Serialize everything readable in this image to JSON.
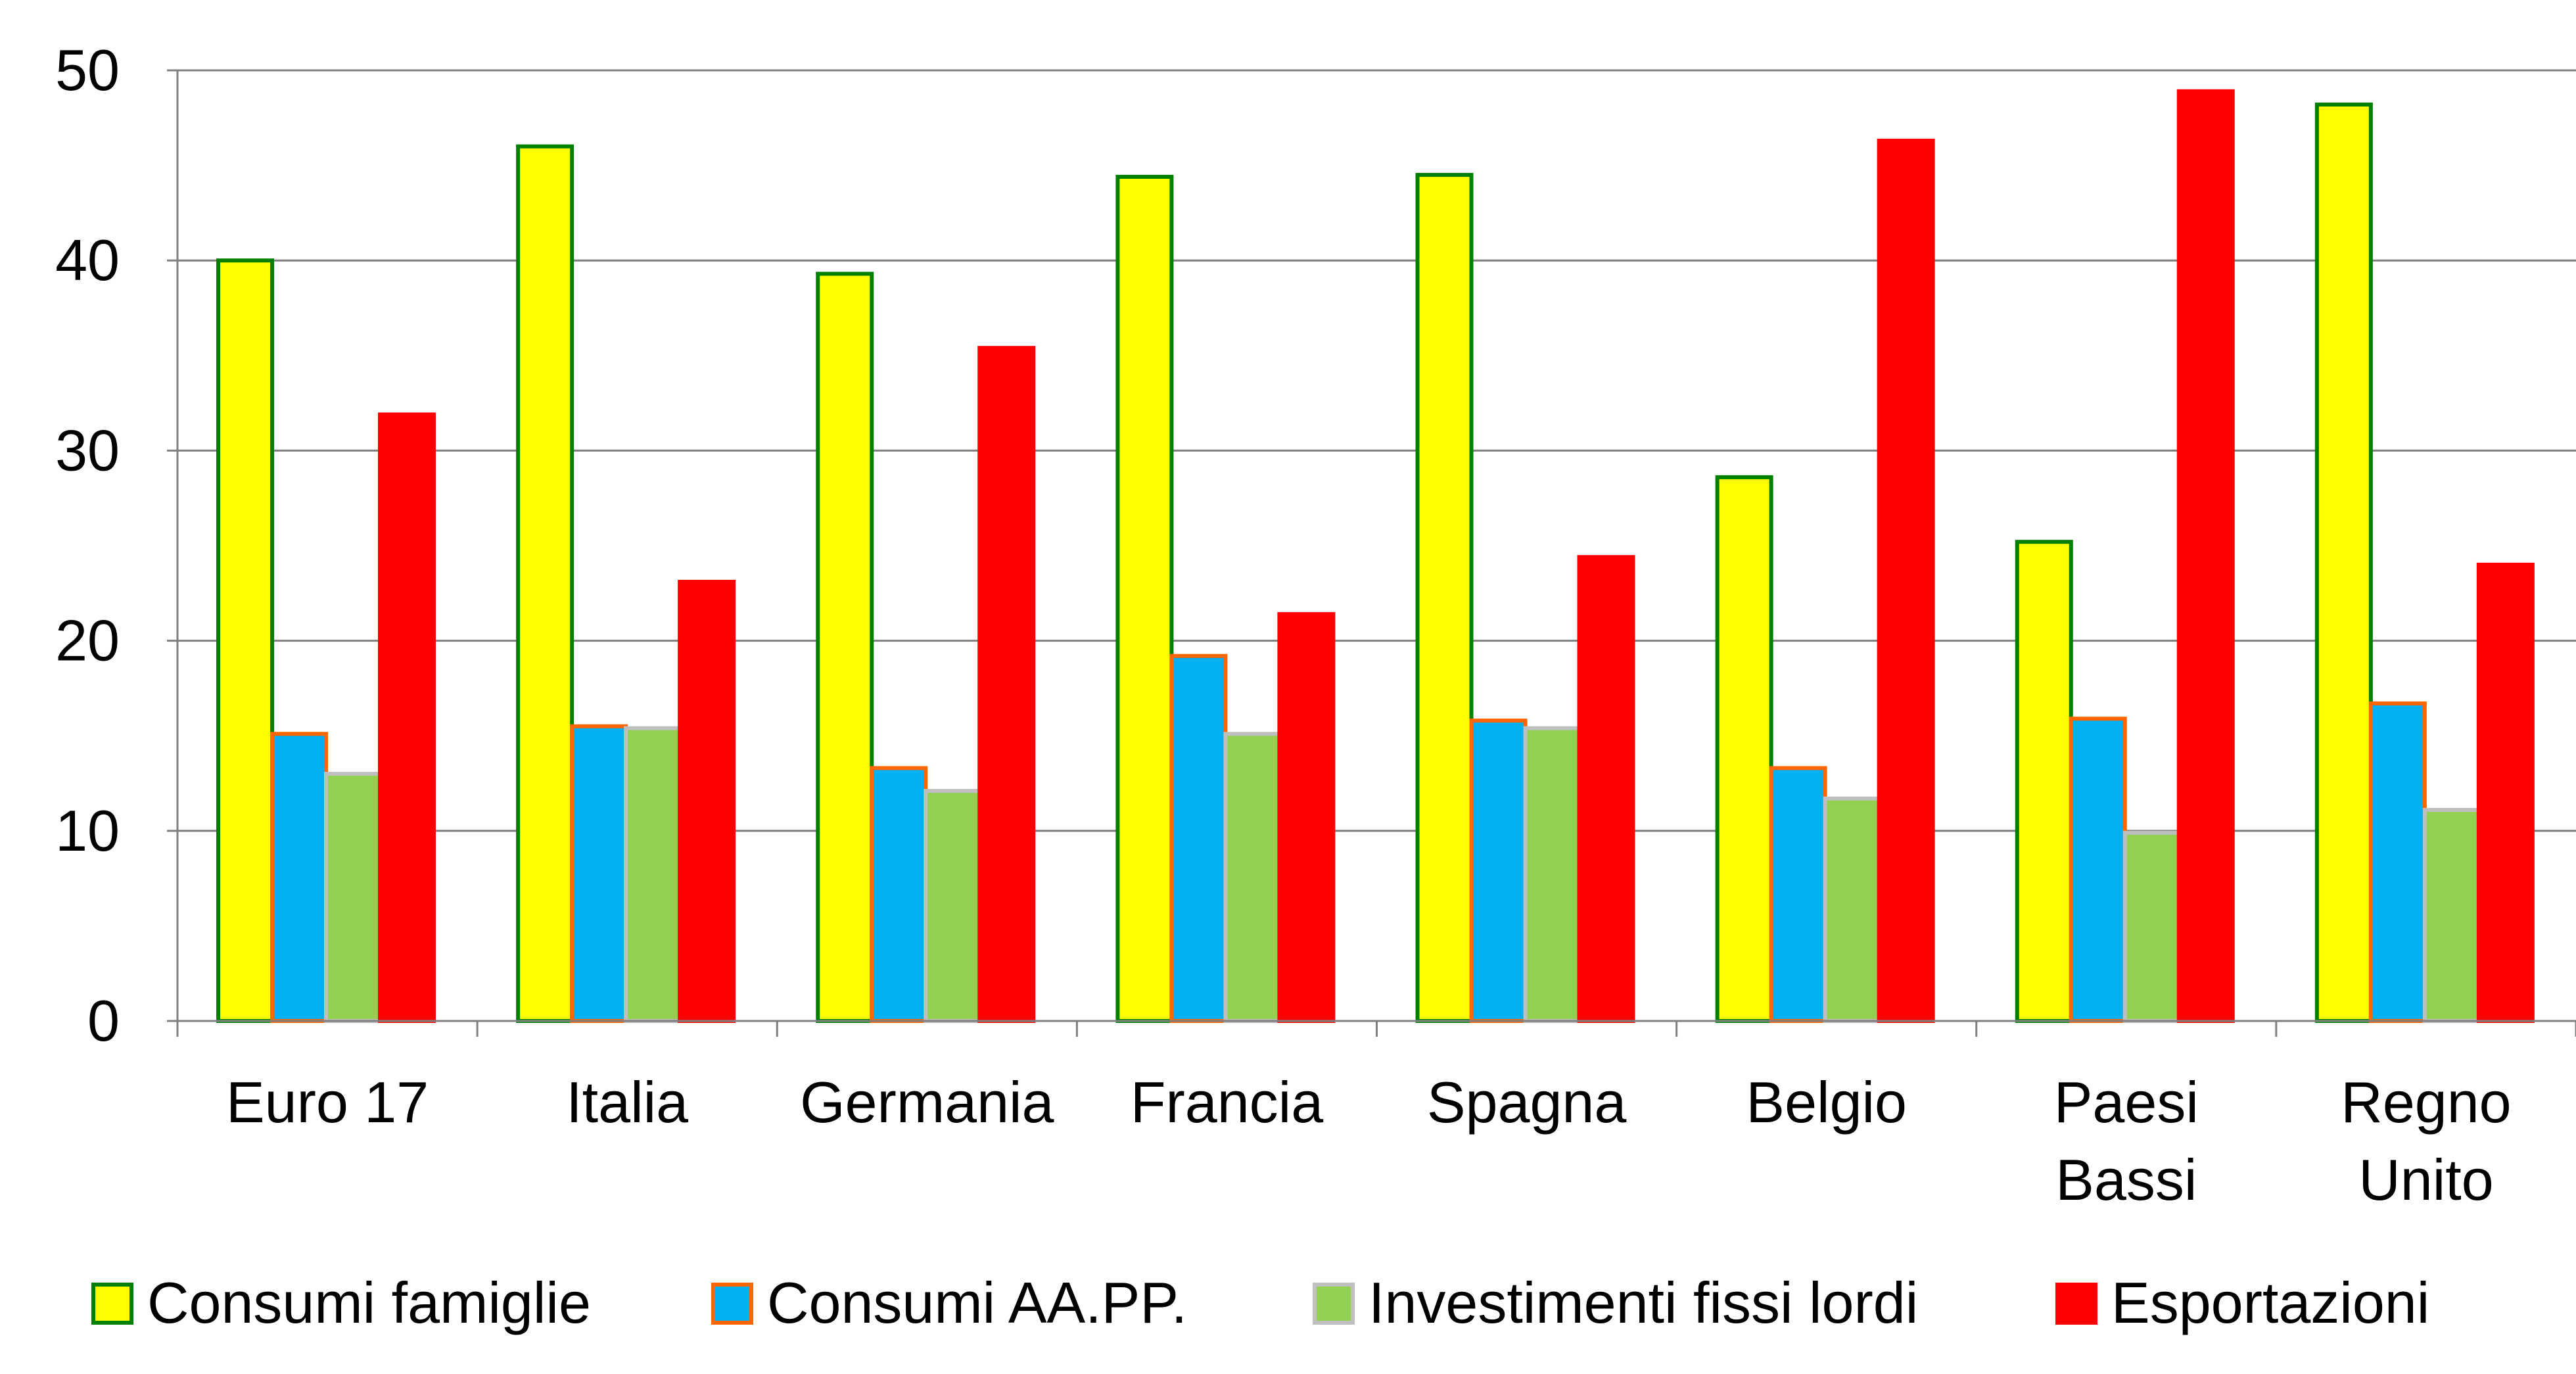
{
  "chart_data": {
    "type": "bar",
    "title": "",
    "xlabel": "",
    "ylabel": "",
    "ylim": [
      0,
      50
    ],
    "yticks": [
      0,
      10,
      20,
      30,
      40,
      50
    ],
    "grid": true,
    "legend_position": "bottom",
    "categories": [
      [
        "Euro 17"
      ],
      [
        "Italia"
      ],
      [
        "Germania"
      ],
      [
        "Francia"
      ],
      [
        "Spagna"
      ],
      [
        "Belgio"
      ],
      [
        "Paesi",
        "Bassi"
      ],
      [
        "Regno",
        "Unito"
      ]
    ],
    "series": [
      {
        "name": "Consumi famiglie",
        "fill": "#ffff00",
        "stroke": "#008000",
        "values": [
          40.0,
          46.0,
          39.3,
          44.4,
          44.5,
          28.6,
          25.2,
          48.2
        ]
      },
      {
        "name": "Consumi AA.PP.",
        "fill": "#00b0f0",
        "stroke": "#ff6600",
        "values": [
          15.1,
          15.5,
          13.3,
          19.2,
          15.8,
          13.3,
          15.9,
          16.7
        ]
      },
      {
        "name": "Investimenti fissi lordi",
        "fill": "#92d050",
        "stroke": "#bfbfbf",
        "values": [
          13.0,
          15.4,
          12.1,
          15.1,
          15.4,
          11.7,
          9.9,
          11.1
        ]
      },
      {
        "name": "Esportazioni",
        "fill": "#ff0000",
        "stroke": "#ff0000",
        "values": [
          31.9,
          23.1,
          35.4,
          21.4,
          24.4,
          46.3,
          48.9,
          24.0
        ]
      }
    ]
  }
}
